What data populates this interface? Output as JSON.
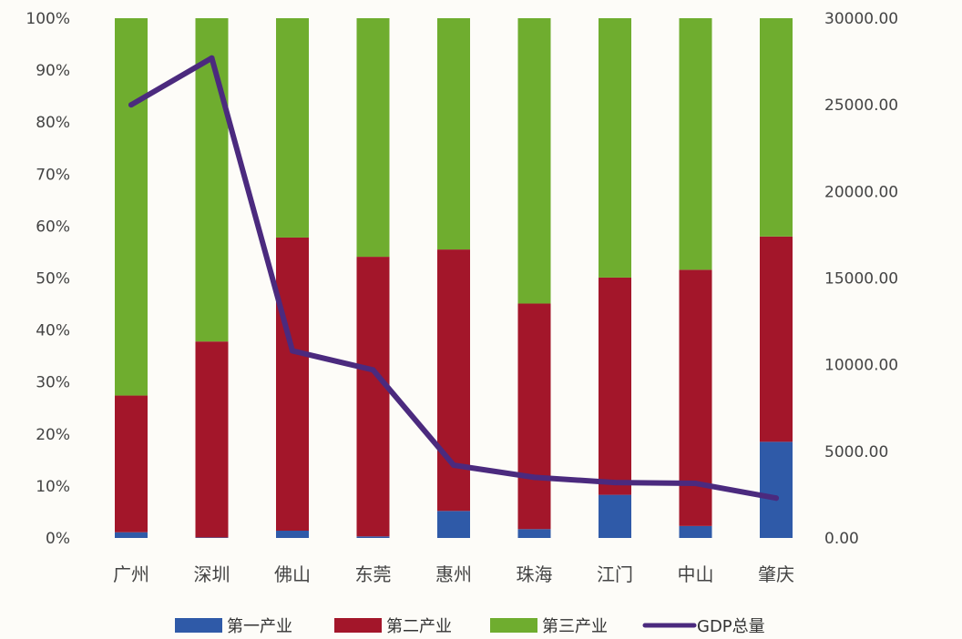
{
  "chart_data": {
    "type": "bar",
    "stacked": true,
    "categories": [
      "广州",
      "深圳",
      "佛山",
      "东莞",
      "惠州",
      "珠海",
      "江门",
      "中山",
      "肇庆"
    ],
    "series": [
      {
        "name": "第一产业",
        "color": "#2f5aa8",
        "values": [
          1.1,
          0.1,
          1.4,
          0.3,
          5.2,
          1.7,
          8.3,
          2.3,
          18.5
        ],
        "axis": "left"
      },
      {
        "name": "第二产业",
        "color": "#a3162a",
        "values": [
          26.3,
          37.7,
          56.4,
          53.8,
          50.3,
          43.4,
          41.8,
          49.3,
          39.5
        ],
        "axis": "left"
      },
      {
        "name": "第三产业",
        "color": "#6fad2f",
        "values": [
          72.6,
          62.2,
          42.2,
          45.9,
          44.5,
          54.9,
          49.9,
          48.4,
          42.0
        ],
        "axis": "left"
      },
      {
        "name": "GDP总量",
        "type": "line",
        "color": "#4b2a7e",
        "values": [
          25000,
          27700,
          10800,
          9700,
          4200,
          3500,
          3200,
          3150,
          2300
        ],
        "axis": "right"
      }
    ],
    "y_left": {
      "min": 0,
      "max": 100,
      "ticks": [
        "0%",
        "10%",
        "20%",
        "30%",
        "40%",
        "50%",
        "60%",
        "70%",
        "80%",
        "90%",
        "100%"
      ]
    },
    "y_right": {
      "min": 0,
      "max": 30000,
      "ticks": [
        "0.00",
        "5000.00",
        "10000.00",
        "15000.00",
        "20000.00",
        "25000.00",
        "30000.00"
      ]
    },
    "grid": false,
    "legend_position": "bottom"
  }
}
